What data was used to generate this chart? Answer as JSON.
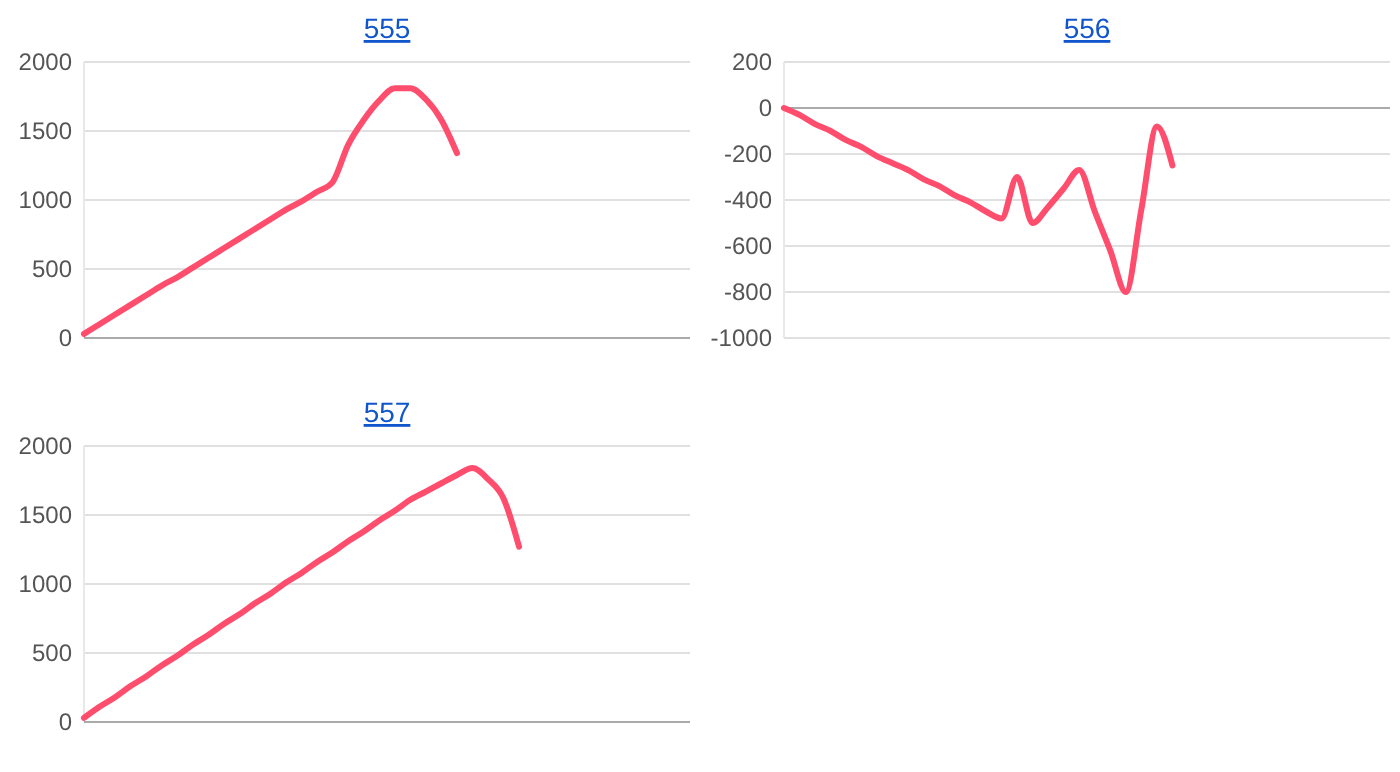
{
  "chart_data": [
    {
      "type": "line",
      "title": "555",
      "categories": [
        null,
        null,
        null,
        null,
        null,
        null,
        null,
        null,
        null,
        null,
        null,
        null,
        null,
        null,
        null,
        null,
        null,
        null,
        null,
        null,
        null,
        null,
        null,
        null,
        null,
        null,
        null,
        null,
        null,
        null,
        null,
        null,
        null,
        null,
        null,
        null,
        null,
        null,
        null,
        null
      ],
      "series": [
        {
          "color": "#ff4d6d",
          "values": [
            30,
            100,
            170,
            240,
            310,
            380,
            440,
            510,
            580,
            650,
            720,
            790,
            860,
            930,
            990,
            1060,
            1130,
            1400,
            1580,
            1720,
            1810,
            1810,
            1730,
            1580,
            1340,
            null,
            null,
            null,
            null,
            null,
            null,
            null,
            null,
            null,
            null,
            null,
            null,
            null,
            null,
            null
          ]
        }
      ],
      "ylim": [
        0,
        2000
      ],
      "yticks": [
        0,
        500,
        1000,
        1500,
        2000
      ],
      "grid": "y",
      "tick_labels": "y"
    },
    {
      "type": "line",
      "title": "556",
      "categories": [
        null,
        null,
        null,
        null,
        null,
        null,
        null,
        null,
        null,
        null,
        null,
        null,
        null,
        null,
        null,
        null,
        null,
        null,
        null,
        null,
        null,
        null,
        null,
        null,
        null,
        null,
        null,
        null,
        null,
        null,
        null,
        null,
        null,
        null,
        null,
        null,
        null,
        null,
        null,
        null
      ],
      "series": [
        {
          "color": "#ff4d6d",
          "values": [
            0,
            -30,
            -70,
            -100,
            -140,
            -170,
            -210,
            -240,
            -270,
            -310,
            -340,
            -380,
            -410,
            -450,
            -480,
            -300,
            -500,
            -430,
            -350,
            -270,
            -450,
            -620,
            -800,
            -440,
            -80,
            -250,
            null,
            null,
            null,
            null,
            null,
            null,
            null,
            null,
            null,
            null,
            null,
            null,
            null,
            null
          ]
        }
      ],
      "ylim": [
        -1000,
        200
      ],
      "yticks": [
        -1000,
        -800,
        -600,
        -400,
        -200,
        0,
        200
      ],
      "grid": "y",
      "tick_labels": "y"
    },
    {
      "type": "line",
      "title": "557",
      "categories": [
        null,
        null,
        null,
        null,
        null,
        null,
        null,
        null,
        null,
        null,
        null,
        null,
        null,
        null,
        null,
        null,
        null,
        null,
        null,
        null,
        null,
        null,
        null,
        null,
        null,
        null,
        null,
        null,
        null,
        null,
        null,
        null,
        null,
        null,
        null,
        null,
        null,
        null,
        null,
        null
      ],
      "series": [
        {
          "color": "#ff4d6d",
          "values": [
            30,
            110,
            180,
            260,
            330,
            410,
            480,
            560,
            630,
            710,
            780,
            860,
            930,
            1010,
            1080,
            1160,
            1230,
            1310,
            1380,
            1460,
            1530,
            1610,
            1670,
            1730,
            1790,
            1840,
            1760,
            1620,
            1270,
            null,
            null,
            null,
            null,
            null,
            null,
            null,
            null,
            null,
            null,
            null
          ]
        }
      ],
      "ylim": [
        0,
        2000
      ],
      "yticks": [
        0,
        500,
        1000,
        1500,
        2000
      ],
      "grid": "y",
      "tick_labels": "y"
    }
  ]
}
